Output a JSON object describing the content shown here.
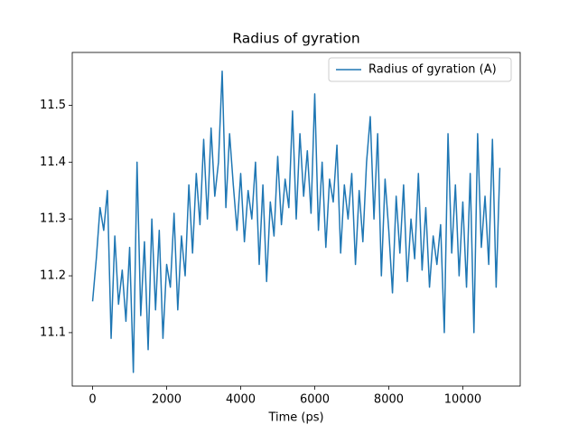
{
  "chart_data": {
    "type": "line",
    "title": "Radius of gyration",
    "x_label": "Time (ps)",
    "x": [
      0,
      100,
      200,
      300,
      400,
      500,
      600,
      700,
      800,
      900,
      1000,
      1100,
      1200,
      1300,
      1400,
      1500,
      1600,
      1700,
      1800,
      1900,
      2000,
      2100,
      2200,
      2300,
      2400,
      2500,
      2600,
      2700,
      2800,
      2900,
      3000,
      3100,
      3200,
      3300,
      3400,
      3500,
      3600,
      3700,
      3800,
      3900,
      4000,
      4100,
      4200,
      4300,
      4400,
      4500,
      4600,
      4700,
      4800,
      4900,
      5000,
      5100,
      5200,
      5300,
      5400,
      5500,
      5600,
      5700,
      5800,
      5900,
      6000,
      6100,
      6200,
      6300,
      6400,
      6500,
      6600,
      6700,
      6800,
      6900,
      7000,
      7100,
      7200,
      7300,
      7400,
      7500,
      7600,
      7700,
      7800,
      7900,
      8000,
      8100,
      8200,
      8300,
      8400,
      8500,
      8600,
      8700,
      8800,
      8900,
      9000,
      9100,
      9200,
      9300,
      9400,
      9500,
      9600,
      9700,
      9800,
      9900,
      10000,
      10100,
      10200,
      10300,
      10400,
      10500,
      10600,
      10700,
      10800,
      10900,
      11000
    ],
    "series": [
      {
        "name": "Radius of gyration (A)",
        "color": "#1f77b4",
        "values": [
          11.155,
          11.23,
          11.32,
          11.28,
          11.35,
          11.09,
          11.27,
          11.15,
          11.21,
          11.12,
          11.25,
          11.03,
          11.4,
          11.13,
          11.26,
          11.07,
          11.3,
          11.14,
          11.28,
          11.09,
          11.22,
          11.18,
          11.31,
          11.14,
          11.27,
          11.2,
          11.36,
          11.24,
          11.38,
          11.29,
          11.44,
          11.3,
          11.46,
          11.34,
          11.4,
          11.56,
          11.32,
          11.45,
          11.36,
          11.28,
          11.38,
          11.26,
          11.35,
          11.3,
          11.4,
          11.22,
          11.36,
          11.19,
          11.33,
          11.27,
          11.41,
          11.29,
          11.37,
          11.32,
          11.49,
          11.3,
          11.45,
          11.34,
          11.42,
          11.31,
          11.52,
          11.28,
          11.4,
          11.25,
          11.37,
          11.33,
          11.43,
          11.24,
          11.36,
          11.3,
          11.38,
          11.22,
          11.35,
          11.26,
          11.4,
          11.48,
          11.3,
          11.45,
          11.2,
          11.37,
          11.28,
          11.17,
          11.34,
          11.24,
          11.36,
          11.19,
          11.3,
          11.23,
          11.38,
          11.21,
          11.32,
          11.18,
          11.27,
          11.22,
          11.29,
          11.1,
          11.45,
          11.24,
          11.36,
          11.2,
          11.33,
          11.18,
          11.38,
          11.1,
          11.45,
          11.25,
          11.34,
          11.22,
          11.44,
          11.18,
          11.39
        ]
      }
    ],
    "xlim": [
      -550,
      11550
    ],
    "ylim": [
      11.006,
      11.593
    ],
    "xticks": [
      0,
      2000,
      4000,
      6000,
      8000,
      10000
    ],
    "yticks": [
      11.1,
      11.2,
      11.3,
      11.4,
      11.5
    ],
    "legend": "upper right",
    "grid": false
  }
}
